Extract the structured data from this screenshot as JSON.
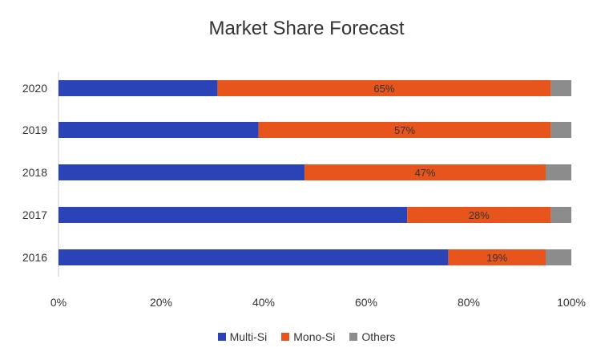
{
  "chart_data": {
    "type": "bar",
    "orientation": "horizontal",
    "stacked": "percent",
    "title": "Market Share Forecast",
    "categories": [
      "2020",
      "2019",
      "2018",
      "2017",
      "2016"
    ],
    "series": [
      {
        "name": "Multi-Si",
        "color": "#2a44b8",
        "values": [
          31,
          39,
          48,
          68,
          76
        ]
      },
      {
        "name": "Mono-Si",
        "color": "#e8551c",
        "values": [
          65,
          57,
          47,
          28,
          19
        ]
      },
      {
        "name": "Others",
        "color": "#8c8c8c",
        "values": [
          4,
          4,
          5,
          4,
          5
        ]
      }
    ],
    "data_labels": [
      "65%",
      "57%",
      "47%",
      "28%",
      "19%"
    ],
    "xlim": [
      0,
      100
    ],
    "xticks": [
      "0%",
      "20%",
      "40%",
      "60%",
      "80%",
      "100%"
    ],
    "legend": "bottom",
    "grid": false
  }
}
